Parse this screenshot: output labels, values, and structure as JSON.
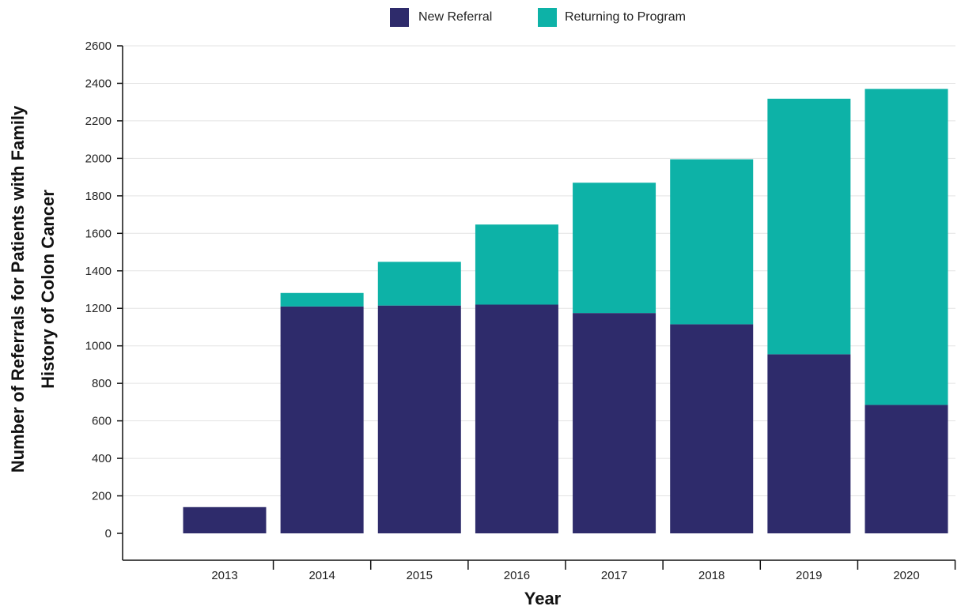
{
  "colors": {
    "new_referral": "#2e2b6b",
    "returning": "#0db2a7",
    "grid": "#e3e3e3",
    "axis": "#111111"
  },
  "chart_data": {
    "type": "bar",
    "stacked": true,
    "categories": [
      "2013",
      "2014",
      "2015",
      "2016",
      "2017",
      "2018",
      "2019",
      "2020"
    ],
    "series": [
      {
        "name": "New Referral",
        "values": [
          140,
          1210,
          1215,
          1220,
          1175,
          1115,
          955,
          685
        ]
      },
      {
        "name": "Returning to Program",
        "values": [
          0,
          72,
          233,
          427,
          695,
          880,
          1363,
          1685
        ]
      }
    ],
    "title": "",
    "xlabel": "Year",
    "ylabel": "Number of Referrals for Patients with Family History of Colon Cancer",
    "ylabel_lines": [
      "Number of Referrals for Patients with Family",
      "History of Colon Cancer"
    ],
    "ylim": [
      0,
      2600
    ],
    "yticks": [
      0,
      200,
      400,
      600,
      800,
      1000,
      1200,
      1400,
      1600,
      1800,
      2000,
      2200,
      2400,
      2600
    ],
    "grid": true,
    "legend_position": "top"
  }
}
